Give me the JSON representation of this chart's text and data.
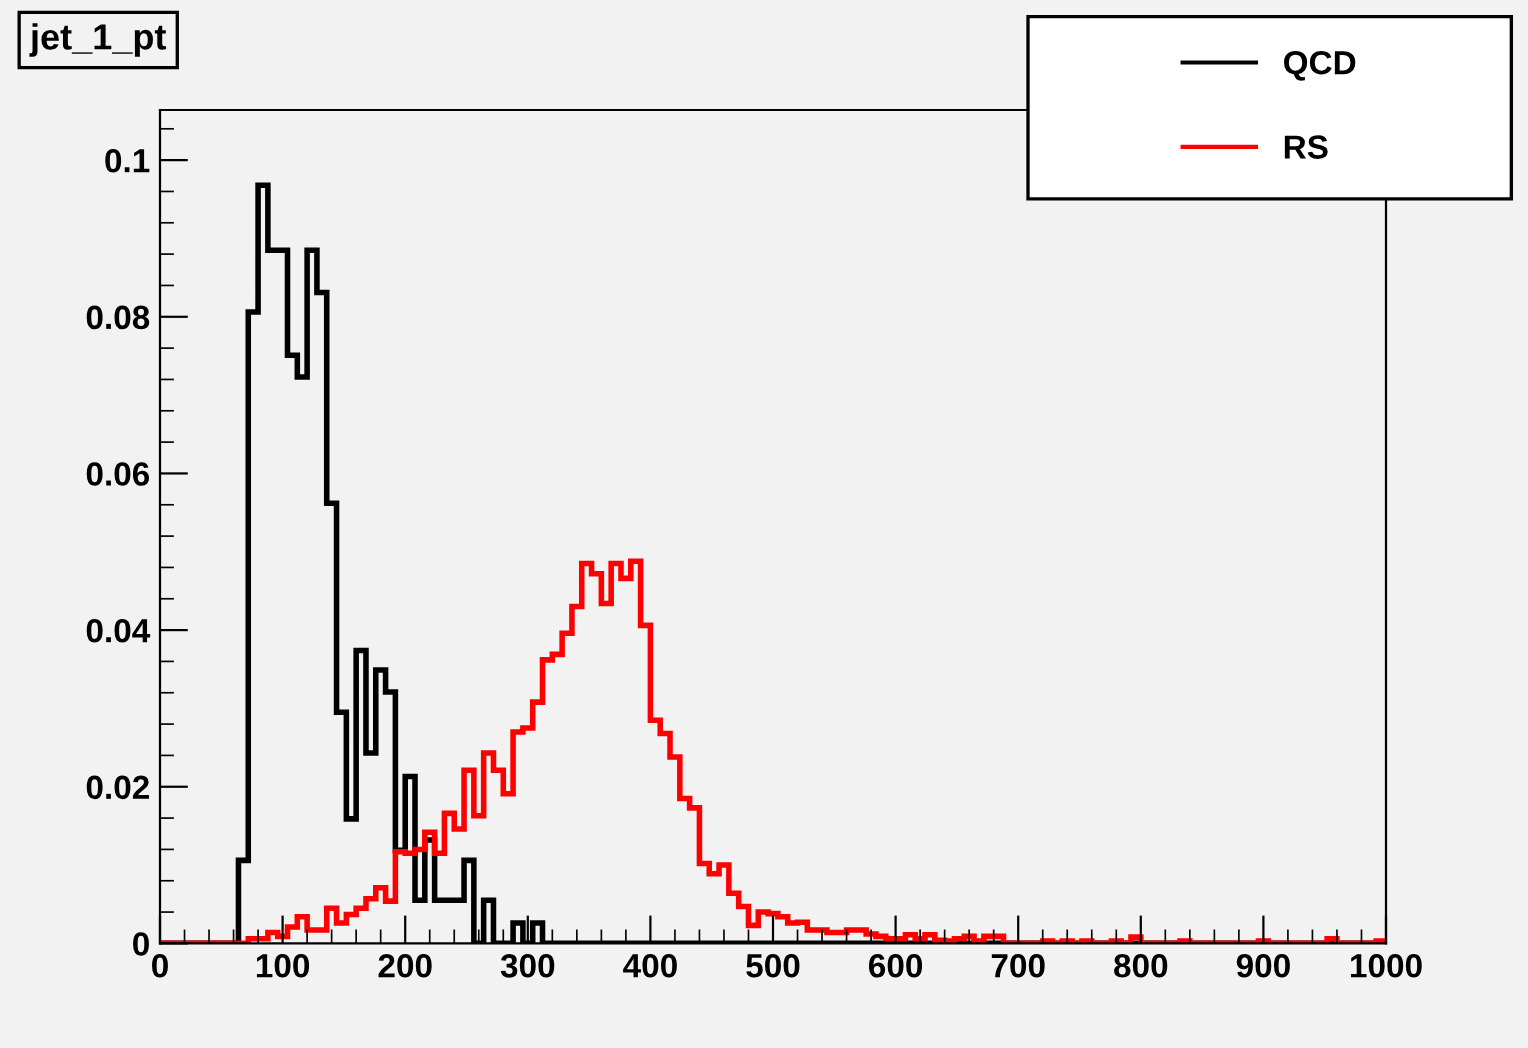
{
  "chart_data": {
    "type": "histogram",
    "title": "jet_1_pt",
    "legend": "top right",
    "grid": false,
    "bins": [
      0,
      8,
      16,
      24,
      32,
      40,
      48,
      56,
      64,
      72,
      80,
      88,
      96,
      104,
      112,
      120,
      128,
      136,
      144,
      152,
      160,
      168,
      176,
      184,
      192,
      200,
      208,
      216,
      224,
      232,
      240,
      248,
      256,
      264,
      272,
      280,
      288,
      296,
      304,
      312,
      320,
      328,
      336,
      344,
      352,
      360,
      368,
      376,
      384,
      392,
      400,
      408,
      416,
      424,
      432,
      440,
      448,
      456,
      464,
      472,
      480,
      488,
      496,
      504,
      512,
      520,
      528,
      536,
      544,
      552,
      560,
      568,
      576,
      584,
      592,
      600,
      608,
      616,
      624,
      632,
      640,
      648,
      656,
      664,
      672,
      680,
      688,
      696,
      704,
      712,
      720,
      728,
      736,
      744,
      752,
      760,
      768,
      776,
      784,
      792,
      800,
      808,
      816,
      824,
      832,
      840,
      848,
      856,
      864,
      872,
      880,
      888,
      896,
      904,
      912,
      920,
      928,
      936,
      944,
      952,
      960,
      968,
      976,
      984,
      992,
      1000
    ],
    "series": [
      {
        "name": "QCD",
        "color": "#000000",
        "values": [
          0,
          0,
          0,
          0,
          0,
          0,
          0,
          0,
          0.0106,
          0.0806,
          0.0968,
          0.0885,
          0.0885,
          0.0751,
          0.0723,
          0.0885,
          0.0831,
          0.0562,
          0.0295,
          0.0159,
          0.0374,
          0.0243,
          0.0349,
          0.0321,
          0.0119,
          0.0213,
          0.0055,
          0.0132,
          0.0055,
          0.0055,
          0.0055,
          0.0106,
          0,
          0.0055,
          0,
          0,
          0.0026,
          0,
          0.0026,
          0,
          0,
          0,
          0,
          0,
          0,
          0,
          0,
          0,
          0,
          0,
          0,
          0,
          0,
          0,
          0,
          0,
          0,
          0,
          0,
          0,
          0,
          0,
          0,
          0,
          0,
          0,
          0,
          0,
          0,
          0,
          0,
          0,
          0,
          0,
          0,
          0,
          0,
          0,
          0,
          0,
          0,
          0,
          0,
          0,
          0,
          0,
          0,
          0,
          0,
          0,
          0,
          0,
          0,
          0,
          0,
          0,
          0,
          0,
          0,
          0,
          0,
          0,
          0,
          0,
          0,
          0,
          0,
          0,
          0,
          0,
          0,
          0,
          0,
          0,
          0,
          0,
          0,
          0,
          0,
          0,
          0,
          0,
          0,
          0,
          0
        ]
      },
      {
        "name": "RS",
        "color": "#ff0000",
        "values": [
          0,
          0,
          0,
          0,
          0,
          0,
          0,
          0,
          0,
          0.0006,
          0.0006,
          0.0014,
          0.0009,
          0.0021,
          0.0034,
          0.0017,
          0.0017,
          0.0045,
          0.0026,
          0.0037,
          0.0045,
          0.0057,
          0.0071,
          0.0054,
          0.0117,
          0.0115,
          0.012,
          0.0142,
          0.0115,
          0.0166,
          0.0146,
          0.0221,
          0.0163,
          0.0243,
          0.0221,
          0.0191,
          0.027,
          0.0275,
          0.0308,
          0.0362,
          0.0369,
          0.0396,
          0.043,
          0.0485,
          0.0472,
          0.0434,
          0.0485,
          0.0466,
          0.0488,
          0.0406,
          0.0285,
          0.0268,
          0.0238,
          0.0185,
          0.0173,
          0.0102,
          0.0089,
          0.01,
          0.0064,
          0.0047,
          0.0023,
          0.004,
          0.0038,
          0.0034,
          0.0026,
          0.0027,
          0.0017,
          0.0017,
          0.0014,
          0.0014,
          0.0017,
          0.0017,
          0.0012,
          0.0009,
          0.0006,
          0.0006,
          0.0011,
          0.0006,
          0.0011,
          0.0004,
          0.0003,
          0.0006,
          0.0009,
          0.0003,
          0.0009,
          0.0009,
          0,
          0,
          0,
          0,
          0.0003,
          0,
          0.0003,
          0,
          0.0003,
          0,
          0,
          0.0003,
          0,
          0.0008,
          0,
          0,
          0,
          0,
          0.0003,
          0,
          0,
          0,
          0,
          0,
          0,
          0,
          0.0003,
          0,
          0,
          0,
          0,
          0,
          0,
          0.0006,
          0,
          0,
          0,
          0,
          0.0003
        ]
      }
    ],
    "xlim": [
      0,
      1000
    ],
    "xticks": [
      0,
      100,
      200,
      300,
      400,
      500,
      600,
      700,
      800,
      900,
      1000
    ],
    "ylim": [
      0,
      0.1064
    ],
    "yticks": [
      0,
      0.02,
      0.04,
      0.06,
      0.08,
      0.1
    ]
  }
}
